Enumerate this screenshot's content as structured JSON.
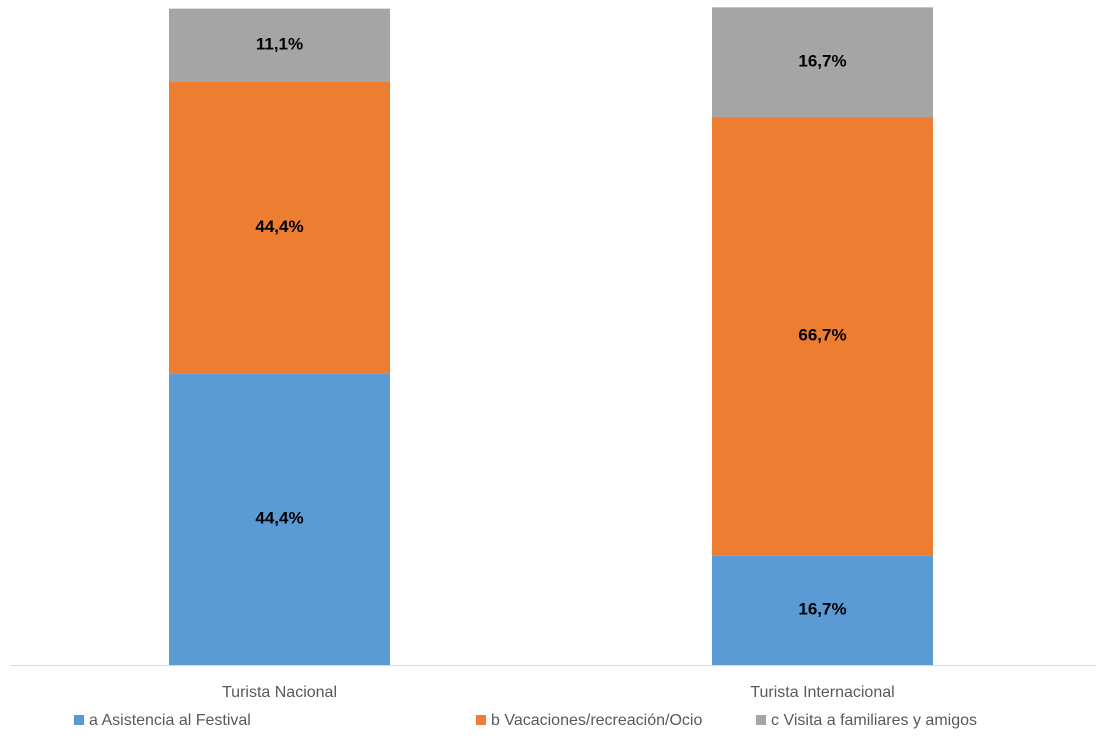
{
  "chart_data": {
    "type": "stacked_bar",
    "categories": [
      "Turista Nacional",
      "Turista Internacional"
    ],
    "series": [
      {
        "name": "a Asistencia al Festival",
        "color": "#5b9bd5",
        "values": [
          44.4,
          16.7
        ],
        "value_labels": [
          "44,4%",
          "16,7%"
        ]
      },
      {
        "name": "b Vacaciones/recreación/Ocio",
        "color": "#ed7d31",
        "values": [
          44.4,
          66.7
        ],
        "value_labels": [
          "44,4%",
          "66,7%"
        ]
      },
      {
        "name": "c Visita a familiares y amigos",
        "color": "#a5a5a5",
        "values": [
          11.1,
          16.7
        ],
        "value_labels": [
          "11,1%",
          "16,7%"
        ]
      }
    ],
    "ylim": [
      0,
      100
    ],
    "legend": "bottom"
  }
}
